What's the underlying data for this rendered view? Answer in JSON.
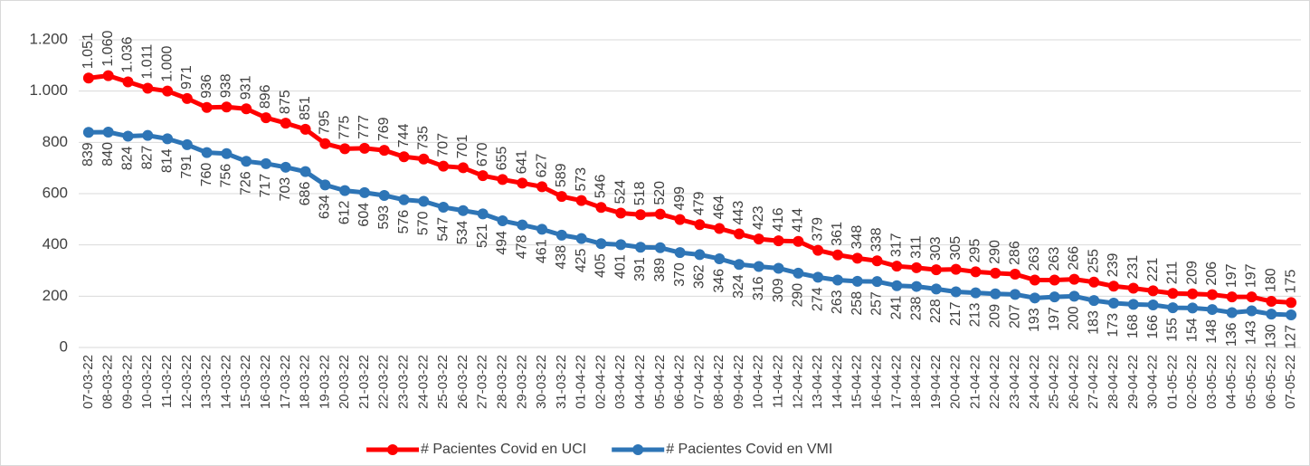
{
  "chart_data": {
    "type": "line",
    "categories": [
      "07-03-22",
      "08-03-22",
      "09-03-22",
      "10-03-22",
      "11-03-22",
      "12-03-22",
      "13-03-22",
      "14-03-22",
      "15-03-22",
      "16-03-22",
      "17-03-22",
      "18-03-22",
      "19-03-22",
      "20-03-22",
      "21-03-22",
      "22-03-22",
      "23-03-22",
      "24-03-22",
      "25-03-22",
      "26-03-22",
      "27-03-22",
      "28-03-22",
      "29-03-22",
      "30-03-22",
      "31-03-22",
      "01-04-22",
      "02-04-22",
      "03-04-22",
      "04-04-22",
      "05-04-22",
      "06-04-22",
      "07-04-22",
      "08-04-22",
      "09-04-22",
      "10-04-22",
      "11-04-22",
      "12-04-22",
      "13-04-22",
      "14-04-22",
      "15-04-22",
      "16-04-22",
      "17-04-22",
      "18-04-22",
      "19-04-22",
      "20-04-22",
      "21-04-22",
      "22-04-22",
      "23-04-22",
      "24-04-22",
      "25-04-22",
      "26-04-22",
      "27-04-22",
      "28-04-22",
      "29-04-22",
      "30-04-22",
      "01-05-22",
      "02-05-22",
      "03-05-22",
      "04-05-22",
      "05-05-22",
      "06-05-22",
      "07-05-22"
    ],
    "series": [
      {
        "name": "# Pacientes Covid en UCI",
        "color": "#ff0000",
        "label_position": "above",
        "values": [
          1051,
          1060,
          1036,
          1011,
          1000,
          971,
          936,
          938,
          931,
          896,
          875,
          851,
          795,
          775,
          777,
          769,
          744,
          735,
          707,
          701,
          670,
          655,
          641,
          627,
          589,
          573,
          546,
          524,
          518,
          520,
          499,
          479,
          464,
          443,
          423,
          416,
          414,
          379,
          361,
          348,
          338,
          317,
          311,
          303,
          305,
          295,
          290,
          286,
          263,
          263,
          266,
          255,
          239,
          231,
          221,
          211,
          209,
          206,
          197,
          197,
          180,
          175
        ],
        "value_labels": [
          "1.051",
          "1.060",
          "1.036",
          "1.011",
          "1.000",
          "971",
          "936",
          "938",
          "931",
          "896",
          "875",
          "851",
          "795",
          "775",
          "777",
          "769",
          "744",
          "735",
          "707",
          "701",
          "670",
          "655",
          "641",
          "627",
          "589",
          "573",
          "546",
          "524",
          "518",
          "520",
          "499",
          "479",
          "464",
          "443",
          "423",
          "416",
          "414",
          "379",
          "361",
          "348",
          "338",
          "317",
          "311",
          "303",
          "305",
          "295",
          "290",
          "286",
          "263",
          "263",
          "266",
          "255",
          "239",
          "231",
          "221",
          "211",
          "209",
          "206",
          "197",
          "197",
          "180",
          "175"
        ]
      },
      {
        "name": "# Pacientes Covid en VMI",
        "color": "#2e75b6",
        "label_position": "below",
        "values": [
          839,
          840,
          824,
          827,
          814,
          791,
          760,
          756,
          726,
          717,
          703,
          686,
          634,
          612,
          604,
          593,
          576,
          570,
          547,
          534,
          521,
          494,
          478,
          461,
          438,
          425,
          405,
          401,
          391,
          389,
          370,
          362,
          346,
          324,
          316,
          309,
          290,
          274,
          263,
          258,
          257,
          241,
          238,
          228,
          217,
          213,
          209,
          207,
          193,
          197,
          200,
          183,
          173,
          168,
          166,
          155,
          154,
          148,
          136,
          143,
          130,
          127
        ]
      }
    ],
    "ylim": [
      0,
      1200
    ],
    "yticks": [
      0,
      200,
      400,
      600,
      800,
      {
        "value": 1000,
        "label": "1.000"
      },
      {
        "value": 1200,
        "label": "1.200"
      }
    ],
    "grid": true,
    "legend": "bottom"
  }
}
